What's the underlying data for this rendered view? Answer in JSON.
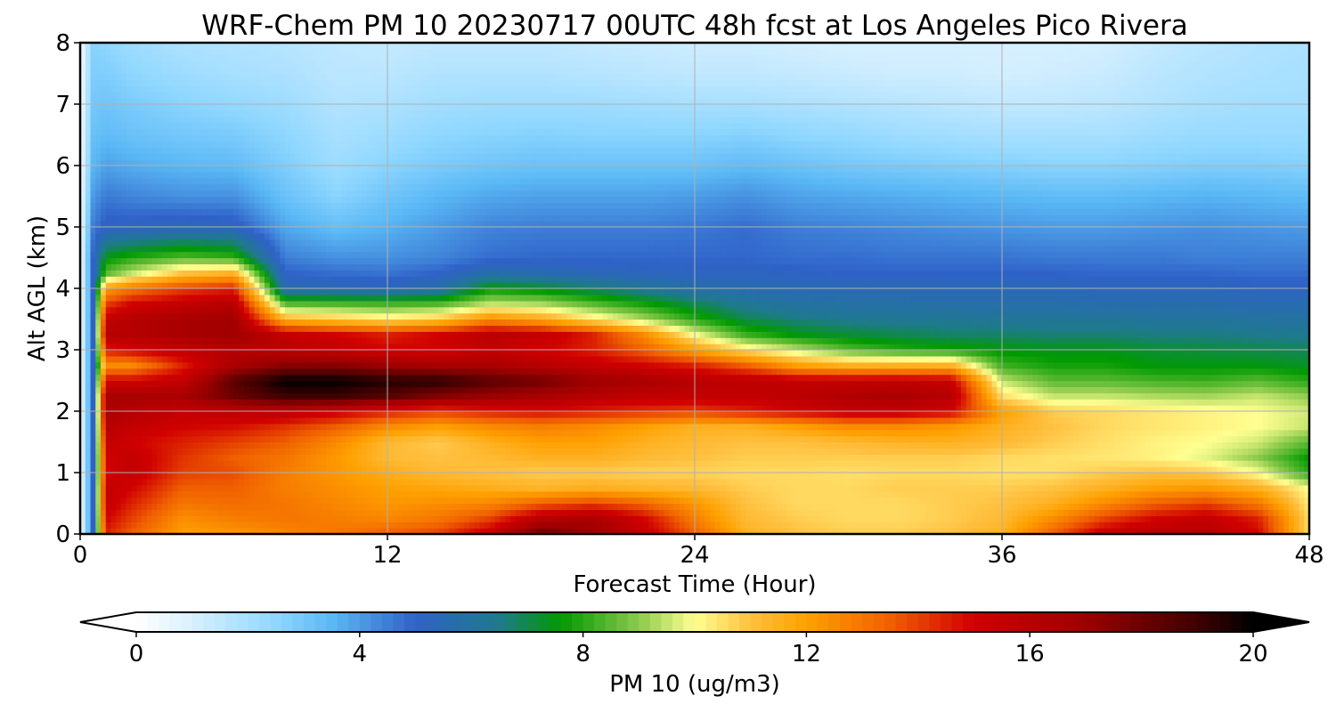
{
  "chart_data": {
    "type": "heatmap",
    "title": "WRF-Chem PM 10  20230717 00UTC 48h fcst at Los Angeles Pico Rivera",
    "xlabel": "Forecast Time (Hour)",
    "ylabel": "Alt AGL (km)",
    "xlim": [
      0,
      48
    ],
    "ylim": [
      0,
      8
    ],
    "xticks": [
      0,
      12,
      24,
      36,
      48
    ],
    "yticks": [
      0,
      1,
      2,
      3,
      4,
      5,
      6,
      7,
      8
    ],
    "grid": true,
    "x_hours": [
      0,
      0.5,
      1,
      2,
      4,
      6,
      8,
      10,
      12,
      14,
      16,
      18,
      20,
      22,
      24,
      26,
      28,
      30,
      32,
      34,
      36,
      38,
      40,
      42,
      44,
      46,
      48
    ],
    "y_km": [
      0,
      0.25,
      0.5,
      0.75,
      1,
      1.25,
      1.5,
      1.75,
      2,
      2.25,
      2.5,
      2.75,
      3,
      3.25,
      3.5,
      3.75,
      4,
      4.25,
      4.5,
      5,
      5.5,
      6,
      6.5,
      7,
      7.5,
      8
    ],
    "values": [
      [
        0.2,
        5,
        14.5,
        13.5,
        12,
        12.2,
        12.6,
        13,
        13.5,
        14,
        15.5,
        18.2,
        17,
        15.5,
        13.5,
        11.5,
        11,
        10.8,
        10.8,
        11,
        11.5,
        13.5,
        15.5,
        16,
        16,
        15,
        10.5
      ],
      [
        0.2,
        5,
        15,
        14,
        12.4,
        12.8,
        13,
        12.8,
        12.6,
        13,
        14,
        16,
        16.5,
        15,
        12.8,
        11.2,
        10.8,
        10.6,
        10.6,
        10.8,
        11.2,
        12.5,
        14,
        15,
        15.5,
        14.5,
        10.5
      ],
      [
        0.2,
        5,
        15.5,
        14.5,
        13,
        13.2,
        13,
        12.6,
        12.2,
        12.4,
        12.6,
        13.5,
        14,
        13.4,
        12.2,
        11,
        10.6,
        10.6,
        10.6,
        10.8,
        11,
        11.5,
        12.5,
        13.5,
        14,
        13,
        10.3
      ],
      [
        0.2,
        5,
        15.5,
        15,
        13.5,
        13.5,
        12.8,
        12.4,
        12,
        11.8,
        11.6,
        11.4,
        11.6,
        11.4,
        11.2,
        10.8,
        10.6,
        10.6,
        10.8,
        10.8,
        10.8,
        11,
        11.5,
        12,
        12.2,
        11.5,
        10
      ],
      [
        0.2,
        5,
        15,
        15.5,
        14,
        13.8,
        12.8,
        12.2,
        11.6,
        11.2,
        11,
        10.8,
        10.8,
        10.7,
        10.7,
        10.6,
        10.6,
        10.5,
        10.6,
        10.6,
        10.5,
        10.5,
        10.8,
        11,
        10.8,
        10,
        8
      ],
      [
        0.2,
        5,
        15,
        15.5,
        14.2,
        13.5,
        13,
        12.2,
        11.2,
        11,
        11.2,
        11.5,
        11.5,
        11.2,
        11,
        10.8,
        10.8,
        10.8,
        10.8,
        10.8,
        10.6,
        10.5,
        10.4,
        10.2,
        9.8,
        9,
        7.6
      ],
      [
        0.2,
        5,
        15.5,
        15,
        14.5,
        14,
        13.5,
        12.5,
        11.2,
        10.8,
        11.5,
        12,
        12,
        11.5,
        11.2,
        11,
        11,
        11.2,
        11.4,
        11.5,
        11.2,
        10.8,
        10.5,
        10.2,
        10,
        9.6,
        8.5
      ],
      [
        0.2,
        5,
        16,
        15.5,
        15,
        14.8,
        14.2,
        13.5,
        12.5,
        12,
        12.5,
        12.8,
        12.5,
        12,
        11.5,
        11.5,
        12,
        12.5,
        12.5,
        12.2,
        11.5,
        11,
        10.6,
        10.4,
        10.2,
        10,
        9.5
      ],
      [
        0.2,
        5,
        16.5,
        16,
        15.5,
        15.8,
        15.8,
        15.2,
        14.5,
        14,
        14.5,
        14.8,
        14.5,
        14.2,
        14,
        14.5,
        15,
        15.5,
        15.5,
        15,
        12,
        10.8,
        10.6,
        10.4,
        10.2,
        10,
        9.6
      ],
      [
        0.2,
        5,
        16.5,
        16.5,
        16.5,
        18,
        19,
        19,
        18.5,
        17.5,
        17,
        16.5,
        16,
        15.6,
        15.5,
        15.5,
        15.8,
        16.2,
        16.4,
        16,
        10.5,
        9.5,
        9.5,
        9.3,
        9.2,
        9.5,
        9
      ],
      [
        0.2,
        5,
        15,
        15,
        15.5,
        18.5,
        20,
        20,
        19.5,
        19.5,
        18.5,
        18,
        17,
        16.5,
        16,
        15.8,
        15.5,
        15.5,
        15.6,
        15.4,
        9.5,
        8.5,
        8.5,
        8.3,
        8.2,
        8.5,
        8
      ],
      [
        0.2,
        5,
        12.5,
        12.5,
        14.5,
        16.5,
        17.5,
        17.5,
        17,
        16.5,
        16.5,
        16,
        15.5,
        15,
        14.5,
        13.5,
        12,
        11.5,
        11.5,
        11.5,
        8.2,
        7.8,
        7.8,
        7.5,
        7.5,
        7.5,
        7.3
      ],
      [
        0.2,
        5,
        14.5,
        15,
        15.5,
        16,
        15.8,
        15.5,
        15,
        15,
        15.5,
        15,
        14.5,
        13.5,
        12,
        10.5,
        9.5,
        8.5,
        8,
        7.8,
        7.5,
        7.4,
        7.4,
        7.2,
        7.1,
        7,
        6.9
      ],
      [
        0.2,
        5,
        16,
        16,
        16.5,
        16.8,
        15.5,
        15,
        14.5,
        15,
        15.8,
        15.5,
        14.5,
        12.5,
        10,
        8.2,
        7.5,
        7.2,
        7,
        6.8,
        6.8,
        6.7,
        6.7,
        6.6,
        6.6,
        6.5,
        6.4
      ],
      [
        0.2,
        5,
        15.5,
        16,
        16.5,
        16.8,
        11.5,
        11,
        10.5,
        11,
        12.5,
        11.8,
        10.5,
        9.3,
        8,
        7,
        6.6,
        6.4,
        6.3,
        6.3,
        6.2,
        6.2,
        6.2,
        6.1,
        6.1,
        6,
        6
      ],
      [
        0.2,
        5,
        14,
        15,
        15.5,
        16,
        8.5,
        8.4,
        8.3,
        8.4,
        9.5,
        9.3,
        8.5,
        7.8,
        7,
        6.3,
        6,
        5.9,
        5.9,
        5.8,
        5.8,
        5.8,
        5.7,
        5.7,
        5.7,
        5.6,
        5.6
      ],
      [
        0.2,
        5,
        12,
        13,
        14,
        14.5,
        5.6,
        5.5,
        5.4,
        5.8,
        7.6,
        7.3,
        6.8,
        6.2,
        5.8,
        5.6,
        5.5,
        5.5,
        5.5,
        5.4,
        5.4,
        5.4,
        5.3,
        5.3,
        5.3,
        5.2,
        5.2
      ],
      [
        0.2,
        5,
        8.5,
        9.5,
        11,
        11.5,
        5,
        4.8,
        4.7,
        5,
        5.8,
        5.6,
        5.4,
        5.3,
        5.2,
        5.2,
        5.1,
        5,
        5,
        5,
        5,
        5,
        4.9,
        4.9,
        4.9,
        4.8,
        4.8
      ],
      [
        0.2,
        5,
        7.5,
        8,
        8.5,
        8.2,
        4.5,
        4.2,
        4.2,
        4.4,
        4.8,
        4.9,
        4.9,
        4.9,
        4.9,
        4.9,
        4.8,
        4.8,
        4.7,
        4.7,
        4.7,
        4.6,
        4.6,
        4.6,
        4.5,
        4.5,
        4.5
      ],
      [
        0.2,
        4.5,
        5.2,
        5.2,
        5.4,
        5.3,
        3.8,
        3.3,
        3.6,
        4,
        4.4,
        4.5,
        4.5,
        4.5,
        4.6,
        4.8,
        4.5,
        4.4,
        4.3,
        4.2,
        4.1,
        4,
        4,
        4.1,
        4.2,
        4.1,
        4
      ],
      [
        0.2,
        4,
        4.6,
        4.4,
        4.2,
        4.2,
        3.2,
        2.6,
        3.1,
        3.5,
        3.8,
        3.9,
        3.9,
        3.9,
        4,
        4.2,
        3.9,
        3.8,
        3.7,
        3.6,
        3.5,
        3.4,
        3.4,
        3.5,
        3.6,
        3.5,
        3.4
      ],
      [
        0.2,
        3.5,
        3.9,
        3.7,
        3.5,
        3.4,
        2.8,
        2.2,
        2.6,
        2.9,
        3.1,
        3.2,
        3.2,
        3.2,
        3.2,
        3.4,
        3.2,
        3,
        2.9,
        2.8,
        2.7,
        2.6,
        2.6,
        2.7,
        2.8,
        2.8,
        2.7
      ],
      [
        0.2,
        3.2,
        3.4,
        3.2,
        3,
        2.9,
        2.5,
        2,
        2.2,
        2.5,
        2.6,
        2.7,
        2.6,
        2.6,
        2.6,
        2.7,
        2.5,
        2.4,
        2.2,
        2.1,
        2,
        2,
        2,
        2.2,
        2.3,
        2.3,
        2.3
      ],
      [
        0.2,
        3,
        3.1,
        2.9,
        2.6,
        2.4,
        2.2,
        1.8,
        1.9,
        2.1,
        2.2,
        2.2,
        2.2,
        2.1,
        2,
        2,
        1.9,
        1.8,
        1.7,
        1.6,
        1.5,
        1.5,
        1.6,
        1.8,
        2,
        2.1,
        2.1
      ],
      [
        0.2,
        2.8,
        2.8,
        2.5,
        2.2,
        2,
        1.9,
        1.6,
        1.6,
        1.8,
        1.8,
        1.8,
        1.7,
        1.6,
        1.5,
        1.5,
        1.4,
        1.3,
        1.2,
        1.2,
        1.1,
        1.2,
        1.3,
        1.6,
        1.8,
        1.9,
        2
      ],
      [
        0.2,
        2.6,
        2.5,
        2.2,
        1.9,
        1.8,
        1.7,
        1.5,
        1.4,
        1.5,
        1.5,
        1.5,
        1.4,
        1.3,
        1.2,
        1.2,
        1.1,
        1,
        1,
        1,
        1,
        1,
        1.1,
        1.4,
        1.6,
        1.8,
        1.9
      ]
    ],
    "colorbar": {
      "label": "PM 10  (ug/m3)",
      "min": 0,
      "max": 20,
      "ticks": [
        0,
        4,
        8,
        12,
        16,
        20
      ],
      "extend": "both",
      "orientation": "horizontal",
      "placement": "bottom",
      "levels": 101,
      "color_stops": [
        {
          "v": 0,
          "c": "#ffffff"
        },
        {
          "v": 1,
          "c": "#d8f0ff"
        },
        {
          "v": 2.5,
          "c": "#8fd7ff"
        },
        {
          "v": 3.5,
          "c": "#5ab8f5"
        },
        {
          "v": 5,
          "c": "#2f62c8"
        },
        {
          "v": 6.5,
          "c": "#1e7a8c"
        },
        {
          "v": 7.6,
          "c": "#009a00"
        },
        {
          "v": 9,
          "c": "#8cca4c"
        },
        {
          "v": 10,
          "c": "#ffff90"
        },
        {
          "v": 11,
          "c": "#ffc040"
        },
        {
          "v": 12,
          "c": "#ffa000"
        },
        {
          "v": 13.5,
          "c": "#f06000"
        },
        {
          "v": 15,
          "c": "#d00000"
        },
        {
          "v": 17,
          "c": "#9c0000"
        },
        {
          "v": 19,
          "c": "#400000"
        },
        {
          "v": 20,
          "c": "#000000"
        }
      ]
    }
  }
}
